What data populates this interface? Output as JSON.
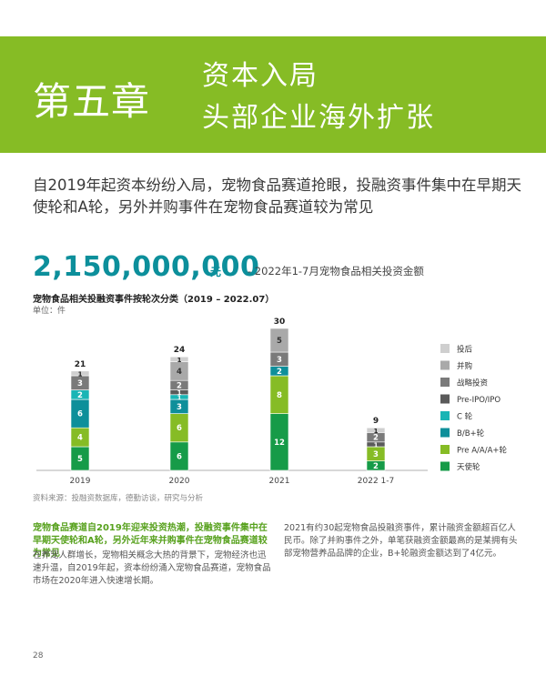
{
  "header": {
    "chapter": "第五章",
    "title_line1": "资本入局",
    "title_line2": "头部企业海外扩张",
    "accent_color": "#86bc25"
  },
  "intro": "自2019年起资本纷纷入局，宠物食品赛道抢眼，投融资事件集中在早期天使轮和A轮，另外并购事件在宠物食品赛道较为常见",
  "highlight": {
    "amount": "2,150,000,000",
    "unit": "元",
    "caption": "- 2022年1-7月宠物食品相关投资金额"
  },
  "chart_data": {
    "type": "bar",
    "stacked": true,
    "title": "宠物食品相关投融资事件按轮次分类（2019 – 2022.07）",
    "unit_label": "单位：件",
    "categories": [
      "2019",
      "2020",
      "2021",
      "2022 1-7"
    ],
    "totals": [
      21,
      24,
      30,
      9
    ],
    "ylim": [
      0,
      30
    ],
    "legend_position": "right",
    "series": [
      {
        "name": "天使轮",
        "color": "#169b48",
        "values": [
          5,
          6,
          12,
          2
        ]
      },
      {
        "name": "Pre A/A/A+轮",
        "color": "#86bc25",
        "values": [
          4,
          6,
          8,
          3
        ]
      },
      {
        "name": "B/B+轮",
        "color": "#0e8f9a",
        "values": [
          6,
          3,
          2,
          0
        ]
      },
      {
        "name": "C 轮",
        "color": "#19b5b5",
        "values": [
          2,
          1,
          0,
          0
        ]
      },
      {
        "name": "Pre-IPO/IPO",
        "color": "#5a5a5a",
        "values": [
          0,
          1,
          0,
          1
        ]
      },
      {
        "name": "战略投资",
        "color": "#7a7a7a",
        "values": [
          3,
          2,
          3,
          2
        ]
      },
      {
        "name": "并购",
        "color": "#a9a9a9",
        "values": [
          0,
          4,
          5,
          0
        ]
      },
      {
        "name": "投后",
        "color": "#cfcfcf",
        "values": [
          1,
          1,
          0,
          1
        ]
      }
    ]
  },
  "source": "资料来源：投融资数据库，德勤访谈，研究与分析",
  "body": {
    "headline": "宠物食品赛道自2019年迎来投资热潮，投融资事件集中在早期天使轮和A轮，另外近年来并购事件在宠物食品赛道较为常见",
    "left_text": "在养宠人群增长，宠物相关概念大热的背景下，宠物经济也迅速升温，自2019年起，资本纷纷涌入宠物食品赛道，宠物食品市场在2020年进入快速增长期。",
    "right_text": "2021有约30起宠物食品投融资事件，累计融资金额超百亿人民币。除了并购事件之外，单笔获融资金额最高的是某拥有头部宠物营养品品牌的企业，B+轮融资金额达到了4亿元。"
  },
  "page_number": "28"
}
